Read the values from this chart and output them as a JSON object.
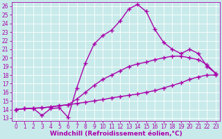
{
  "xlabel": "Windchill (Refroidissement éolien,°C)",
  "ylabel": "",
  "bg_color": "#c8eaea",
  "line_color": "#aa00aa",
  "grid_color": "#ffffff",
  "x_ticks": [
    0,
    1,
    2,
    3,
    4,
    5,
    6,
    7,
    8,
    9,
    10,
    11,
    12,
    13,
    14,
    15,
    16,
    17,
    18,
    19,
    20,
    21,
    22,
    23
  ],
  "y_ticks": [
    13,
    14,
    15,
    16,
    17,
    18,
    19,
    20,
    21,
    22,
    23,
    24,
    25,
    26
  ],
  "xlim": [
    -0.5,
    23.5
  ],
  "ylim": [
    12.7,
    26.5
  ],
  "line1_x": [
    0,
    1,
    2,
    3,
    4,
    5,
    6,
    7,
    8,
    9,
    10,
    11,
    12,
    13,
    14,
    15,
    16,
    17,
    18,
    19,
    20,
    21,
    22,
    23
  ],
  "line1_y": [
    14.0,
    14.1,
    14.15,
    14.2,
    14.3,
    14.45,
    14.55,
    14.7,
    14.85,
    15.0,
    15.15,
    15.35,
    15.5,
    15.65,
    15.8,
    16.0,
    16.2,
    16.5,
    16.8,
    17.1,
    17.5,
    17.8,
    18.0,
    18.0
  ],
  "line2_x": [
    0,
    1,
    2,
    3,
    4,
    5,
    6,
    7,
    8,
    9,
    10,
    11,
    12,
    13,
    14,
    15,
    16,
    17,
    18,
    19,
    20,
    21,
    22,
    23
  ],
  "line2_y": [
    14.0,
    14.1,
    14.15,
    14.2,
    14.3,
    14.45,
    14.55,
    15.2,
    16.0,
    16.8,
    17.5,
    18.0,
    18.5,
    19.0,
    19.3,
    19.5,
    19.8,
    20.0,
    20.2,
    20.2,
    20.0,
    19.8,
    19.2,
    18.2
  ],
  "line3_x": [
    0,
    1,
    2,
    3,
    4,
    5,
    6,
    7,
    8,
    9,
    10,
    11,
    12,
    13,
    14,
    15,
    16,
    17,
    18,
    19,
    20,
    21,
    22,
    23
  ],
  "line3_y": [
    14.0,
    14.1,
    14.15,
    13.3,
    14.1,
    14.2,
    13.1,
    16.5,
    19.4,
    21.6,
    22.6,
    23.2,
    24.3,
    25.7,
    26.2,
    25.4,
    23.3,
    21.8,
    21.0,
    20.5,
    21.0,
    20.5,
    19.0,
    18.2
  ],
  "marker": "+",
  "marker_size": 4,
  "linewidth": 1.0,
  "font_size_ticks": 5.5,
  "font_size_xlabel": 6.5
}
